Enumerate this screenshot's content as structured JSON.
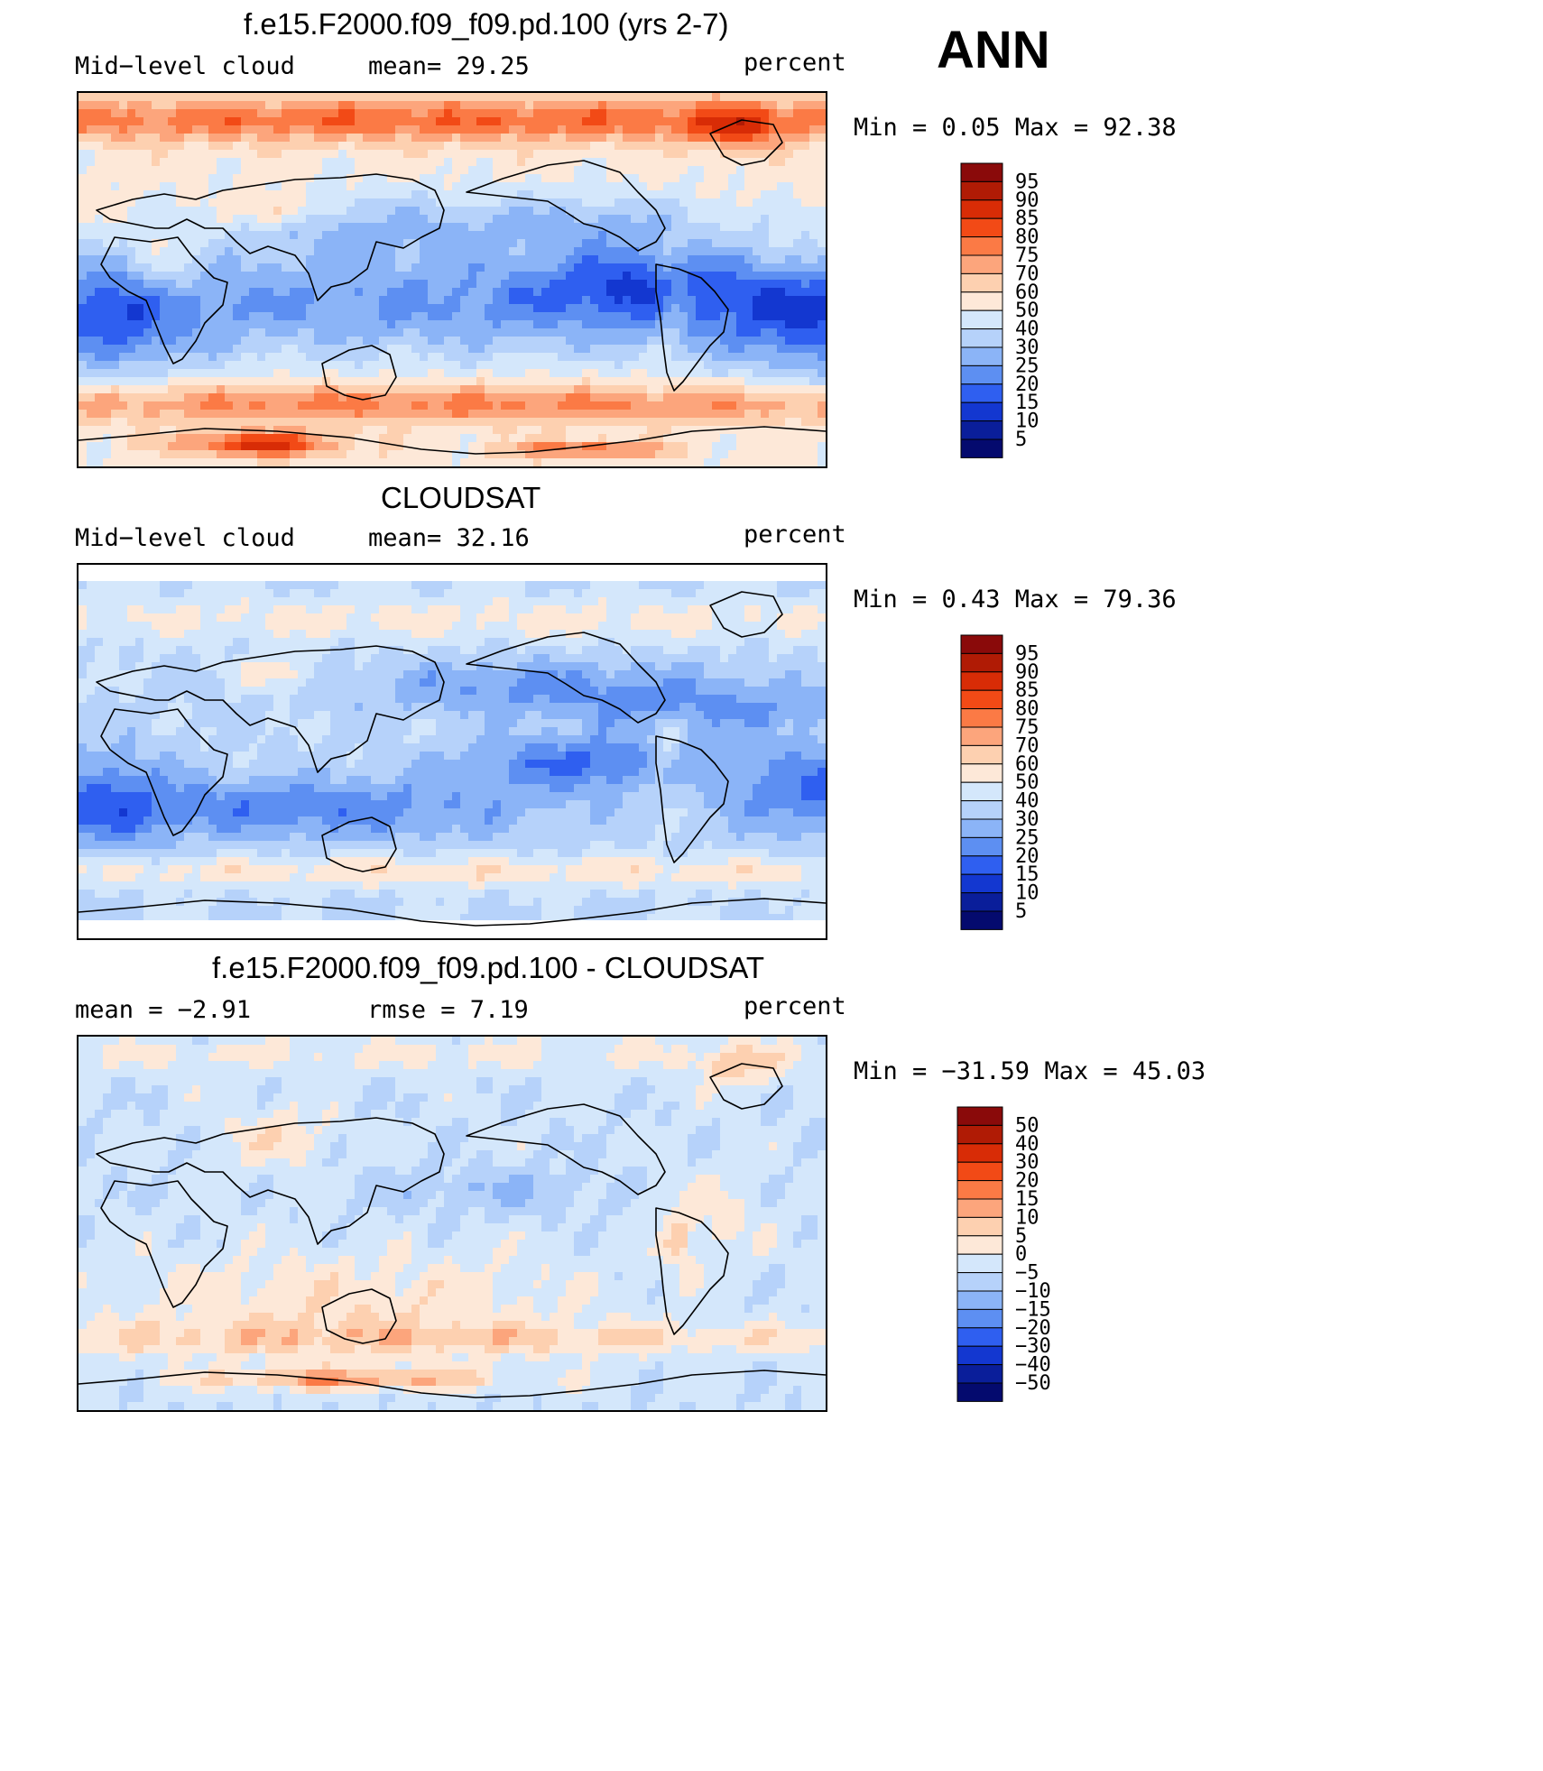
{
  "season": "ANN",
  "panels": [
    {
      "id": "model",
      "title": "f.e15.F2000.f09_f09.pd.100 (yrs 2-7)",
      "left_label": "Mid−level cloud",
      "center_label": "mean=   29.25",
      "units": "percent",
      "minmax": "Min =    0.05 Max =   92.38",
      "colorbar": {
        "labels": [
          "95",
          "90",
          "85",
          "80",
          "75",
          "70",
          "60",
          "50",
          "40",
          "30",
          "25",
          "20",
          "15",
          "10",
          "5"
        ],
        "colors": [
          "#8a0a0a",
          "#b01b05",
          "#d82c06",
          "#f24a16",
          "#fb7a45",
          "#fca57c",
          "#fdd0b0",
          "#fde8d8",
          "#d4e7fb",
          "#b6d2fa",
          "#8bb4f7",
          "#5d8ff2",
          "#2f5ff0",
          "#1337d0",
          "#0a1e9a",
          "#040a6e"
        ]
      },
      "field": "model"
    },
    {
      "id": "obs",
      "title": "CLOUDSAT",
      "left_label": "Mid−level cloud",
      "center_label": "mean=   32.16",
      "units": "percent",
      "minmax": "Min =    0.43 Max =   79.36",
      "colorbar": {
        "labels": [
          "95",
          "90",
          "85",
          "80",
          "75",
          "70",
          "60",
          "50",
          "40",
          "30",
          "25",
          "20",
          "15",
          "10",
          "5"
        ],
        "colors": [
          "#8a0a0a",
          "#b01b05",
          "#d82c06",
          "#f24a16",
          "#fb7a45",
          "#fca57c",
          "#fdd0b0",
          "#fde8d8",
          "#d4e7fb",
          "#b6d2fa",
          "#8bb4f7",
          "#5d8ff2",
          "#2f5ff0",
          "#1337d0",
          "#0a1e9a",
          "#040a6e"
        ]
      },
      "field": "obs"
    },
    {
      "id": "diff",
      "title": "f.e15.F2000.f09_f09.pd.100 - CLOUDSAT",
      "left_label": "mean =   −2.91",
      "center_label": "rmse =    7.19",
      "units": "percent",
      "minmax": "Min = −31.59 Max =   45.03",
      "colorbar": {
        "labels": [
          "50",
          "40",
          "30",
          "20",
          "15",
          "10",
          "5",
          "0",
          "−5",
          "−10",
          "−15",
          "−20",
          "−30",
          "−40",
          "−50"
        ],
        "colors": [
          "#8a0a0a",
          "#b01b05",
          "#d82c06",
          "#f24a16",
          "#fb7a45",
          "#fca57c",
          "#fdd0b0",
          "#fde8d8",
          "#d4e7fb",
          "#b6d2fa",
          "#8bb4f7",
          "#5d8ff2",
          "#2f5ff0",
          "#1337d0",
          "#0a1e9a",
          "#040a6e"
        ]
      },
      "field": "diff"
    }
  ]
}
